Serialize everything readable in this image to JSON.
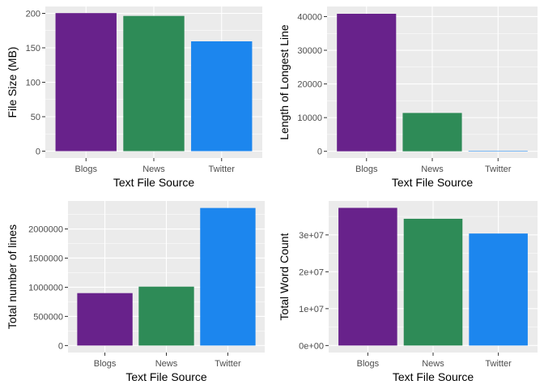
{
  "colors": {
    "panel_bg": "#EBEBEB",
    "grid_major": "#FFFFFF",
    "bar_colors": [
      "#68228B",
      "#2E8B57",
      "#1C86EE"
    ]
  },
  "chart_data": [
    {
      "type": "bar",
      "categories": [
        "Blogs",
        "News",
        "Twitter"
      ],
      "values": [
        200.4,
        196.3,
        159.4
      ],
      "xlabel": "Text File Source",
      "ylabel": "File Size (MB)",
      "ylim": [
        -10,
        210
      ],
      "yticks": [
        0,
        50,
        100,
        150,
        200
      ],
      "ytick_labels": [
        "0",
        "50",
        "100",
        "150",
        "200"
      ],
      "grid": true
    },
    {
      "type": "bar",
      "categories": [
        "Blogs",
        "News",
        "Twitter"
      ],
      "values": [
        40833,
        11384,
        140
      ],
      "xlabel": "Text File Source",
      "ylabel": "Length of Longest Line",
      "ylim": [
        -2000,
        43000
      ],
      "yticks": [
        0,
        10000,
        20000,
        30000,
        40000
      ],
      "ytick_labels": [
        "0",
        "10000",
        "20000",
        "30000",
        "40000"
      ],
      "grid": true
    },
    {
      "type": "bar",
      "categories": [
        "Blogs",
        "News",
        "Twitter"
      ],
      "values": [
        899288,
        1010242,
        2360148
      ],
      "xlabel": "Text File Source",
      "ylabel": "Total number of lines",
      "ylim": [
        -120000,
        2480000
      ],
      "yticks": [
        0,
        500000,
        1000000,
        1500000,
        2000000
      ],
      "ytick_labels": [
        "0",
        "500000",
        "1000000",
        "1500000",
        "2000000"
      ],
      "grid": true
    },
    {
      "type": "bar",
      "categories": [
        "Blogs",
        "News",
        "Twitter"
      ],
      "values": [
        37334131,
        34372530,
        30373583
      ],
      "xlabel": "Text File Source",
      "ylabel": "Total Word Count",
      "ylim": [
        -1900000,
        39200000
      ],
      "yticks": [
        0,
        10000000,
        20000000,
        30000000
      ],
      "ytick_labels": [
        "0e+00",
        "1e+07",
        "2e+07",
        "3e+07"
      ],
      "grid": true
    }
  ]
}
